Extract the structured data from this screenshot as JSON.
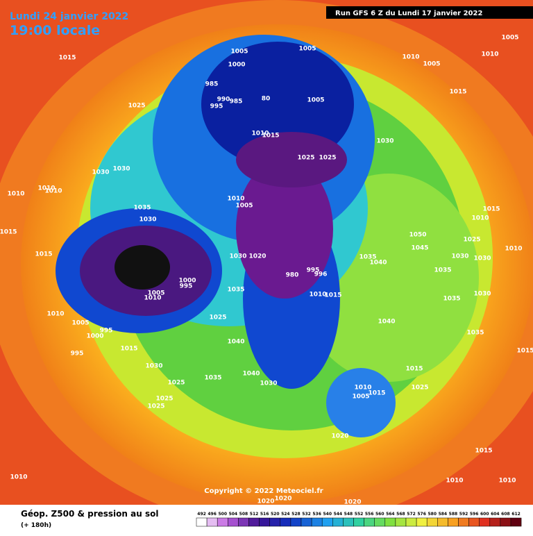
{
  "header": {
    "date": "Lundi 24 janvier 2022",
    "time": "19:00 locale",
    "run": "Run GFS 6 Z du Lundi 17 janvier 2022"
  },
  "map": {
    "copyright": "Copyright © 2022 Meteociel.fr",
    "pressure_labels": [
      "1015",
      "1025",
      "1005",
      "1005",
      "1000",
      "985",
      "990",
      "995",
      "985",
      "80",
      "1005",
      "1010",
      "1015",
      "1025",
      "1025",
      "1030",
      "1010",
      "1005",
      "1015",
      "1010",
      "1005",
      "1030",
      "1030",
      "1010",
      "1010",
      "1010",
      "1035",
      "1030",
      "1010",
      "1005",
      "1015",
      "1015",
      "1030",
      "1020",
      "980",
      "995",
      "996",
      "1005",
      "1010",
      "1000",
      "995",
      "1035",
      "1025",
      "1010",
      "1005",
      "995",
      "1000",
      "1015",
      "995",
      "1040",
      "1030",
      "1025",
      "1035",
      "1025",
      "1025",
      "1040",
      "1030",
      "1010",
      "1005",
      "1015",
      "1015",
      "1025",
      "1020",
      "1050",
      "1045",
      "1035",
      "1040",
      "1035",
      "1030",
      "1030",
      "1025",
      "1015",
      "1010",
      "1010",
      "1030",
      "1035",
      "1040",
      "1035",
      "1010",
      "1015",
      "1010",
      "1010",
      "1010",
      "1015",
      "1015",
      "1020",
      "1020",
      "1020"
    ]
  },
  "footer": {
    "title": "Géop. Z500 & pression au sol",
    "lead": "(+ 180h)",
    "scale": [
      492,
      496,
      500,
      504,
      508,
      512,
      516,
      520,
      524,
      528,
      532,
      536,
      540,
      544,
      548,
      552,
      556,
      560,
      564,
      568,
      572,
      576,
      580,
      584,
      588,
      592,
      596,
      600,
      604,
      608,
      612
    ]
  }
}
